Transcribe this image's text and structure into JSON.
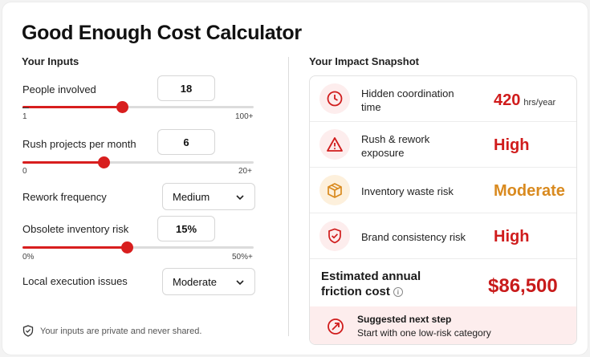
{
  "title": "Good Enough Cost Calculator",
  "inputs": {
    "heading": "Your Inputs",
    "people": {
      "label": "People involved",
      "value": "18",
      "min_label": "1",
      "max_label": "100+",
      "level": 0.43
    },
    "rush": {
      "label": "Rush projects per month",
      "value": "6",
      "min_label": "0",
      "max_label": "20+",
      "level": 0.35
    },
    "rework": {
      "label": "Rework frequency",
      "value": "Medium"
    },
    "obsolete": {
      "label": "Obsolete inventory risk",
      "value": "15%",
      "min_label": "0%",
      "max_label": "50%+",
      "level": 0.45
    },
    "local": {
      "label": "Local execution issues",
      "value": "Moderate"
    },
    "privacy_note": "Your inputs are private and never shared."
  },
  "snapshot": {
    "heading": "Your Impact Snapshot",
    "rows": [
      {
        "label": "Hidden coordination time",
        "value": "420",
        "unit": "hrs/year",
        "icon": "clock-icon"
      },
      {
        "label": "Rush & rework exposure",
        "value": "High",
        "unit": "",
        "icon": "warning-icon"
      },
      {
        "label": "Inventory waste risk",
        "value": "Moderate",
        "unit": "",
        "icon": "box-icon"
      },
      {
        "label": "Brand consistency risk",
        "value": "High",
        "unit": "",
        "icon": "shield-icon"
      }
    ],
    "cost_label_line1": "Estimated annual",
    "cost_label_line2": "friction cost",
    "cost_value": "$86,500",
    "next_step_heading": "Suggested next step",
    "next_step_text": "Start with one low-risk category"
  },
  "colors": {
    "accent": "#d81e1e",
    "moderate": "#d98a1f",
    "soft_red": "#fdeded",
    "soft_orange": "#fdf0dc"
  }
}
